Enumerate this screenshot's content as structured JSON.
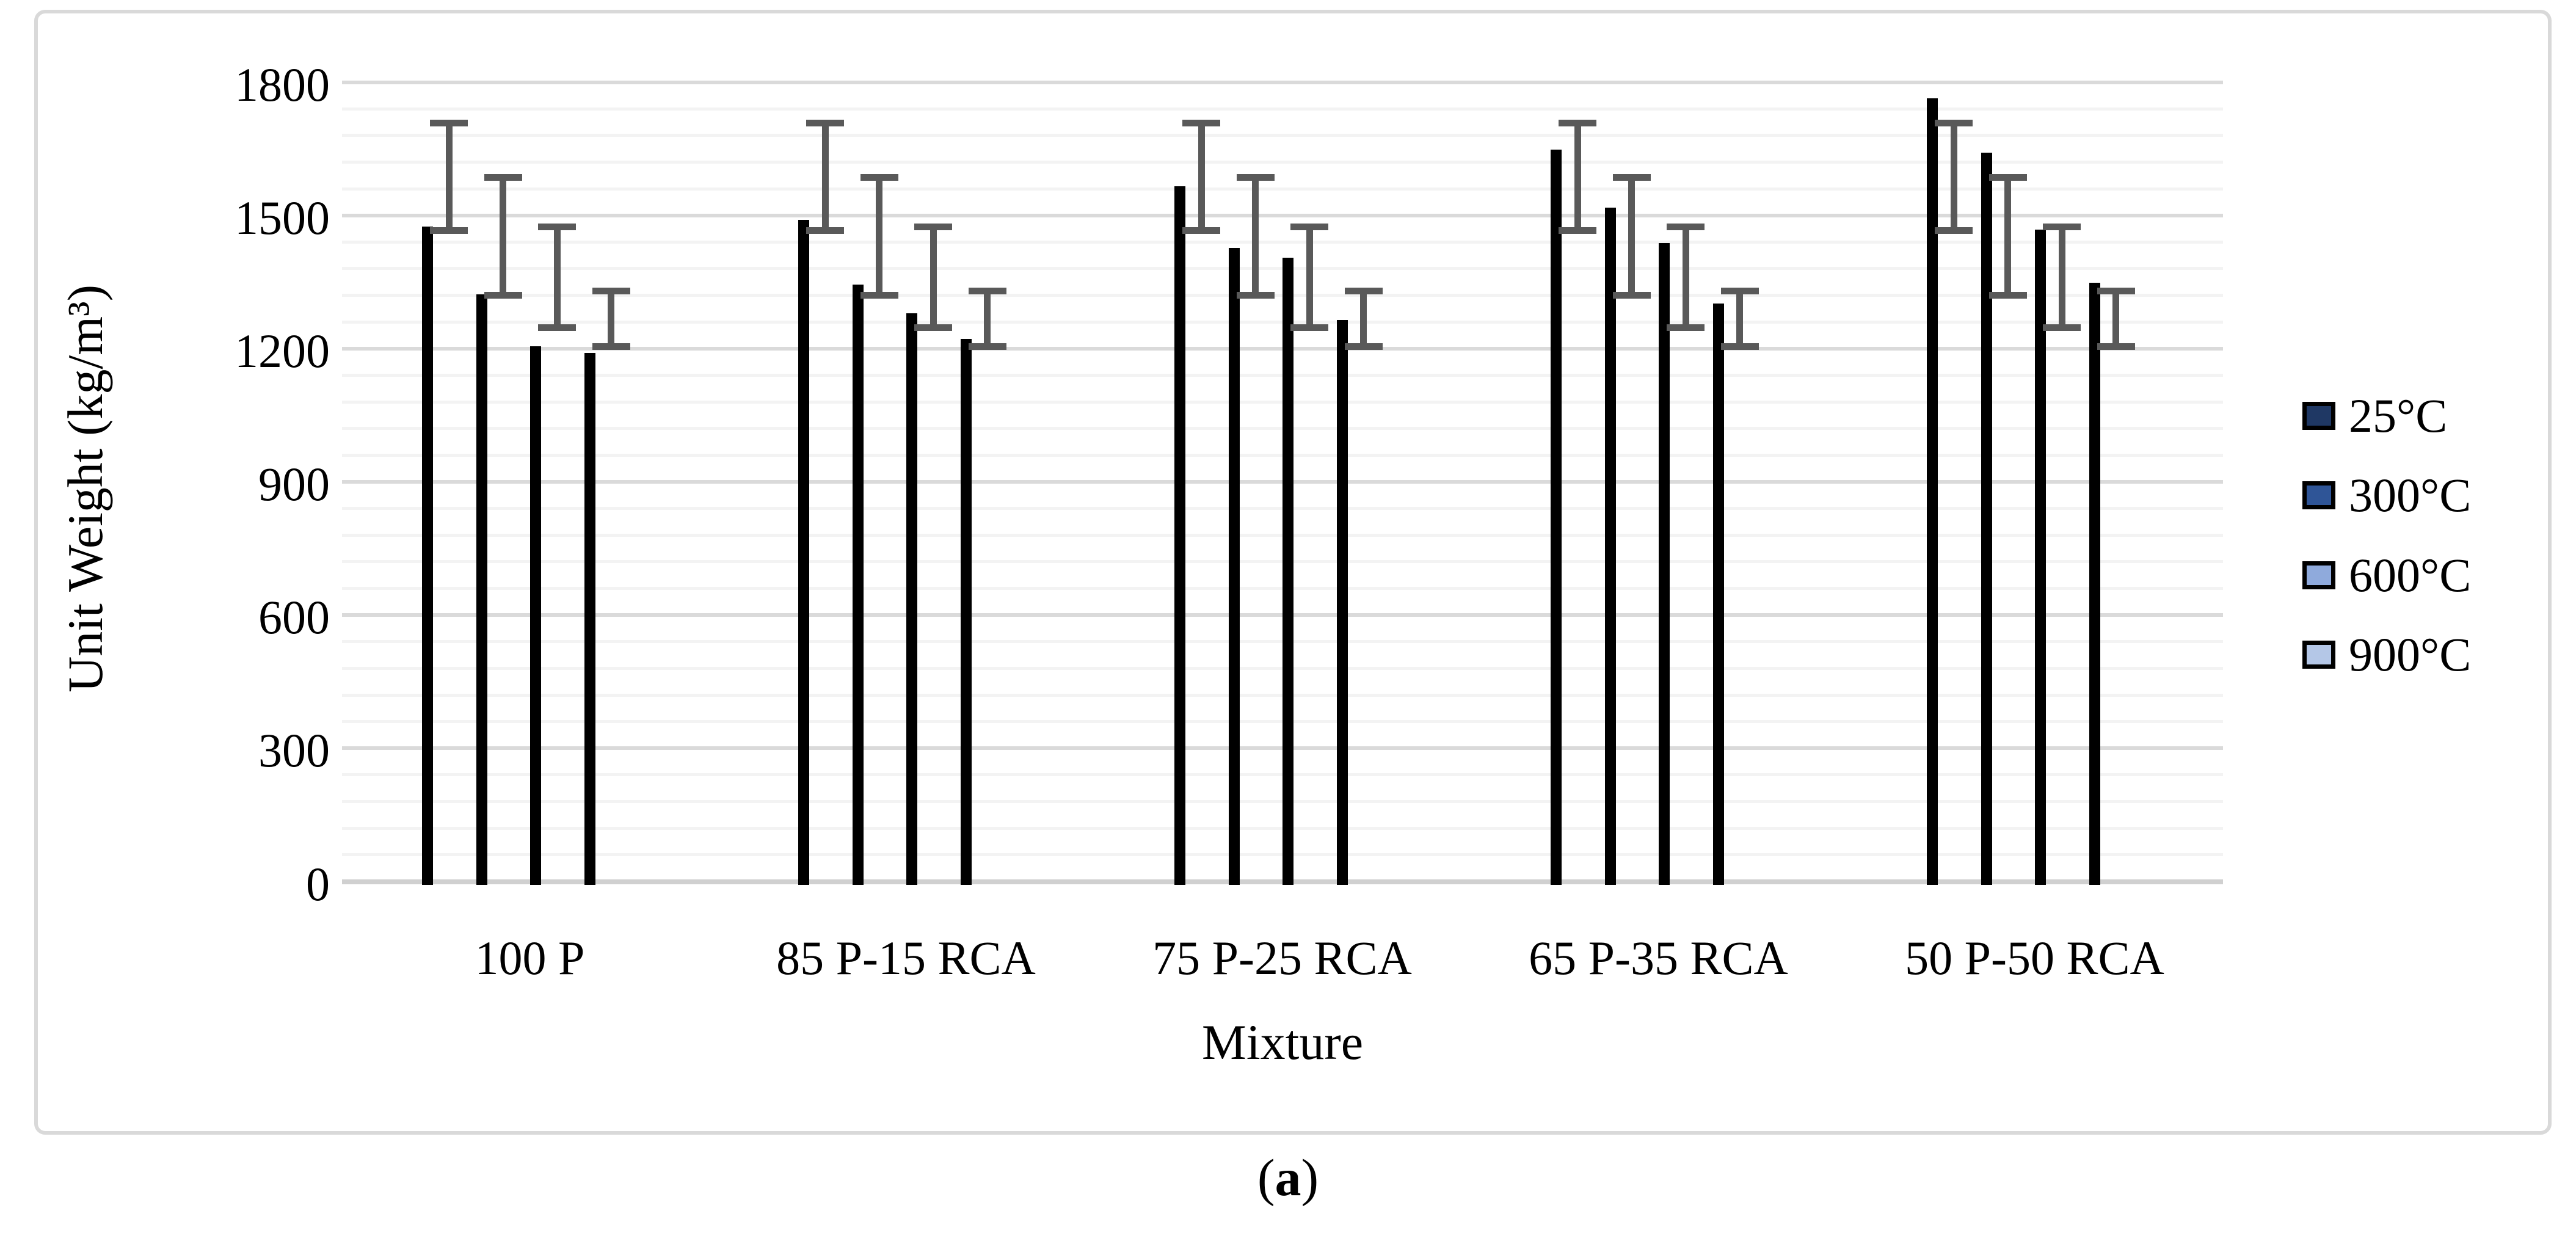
{
  "figure": {
    "caption": {
      "open": "(",
      "letter": "a",
      "close": ")"
    }
  },
  "chart_data": {
    "type": "bar",
    "categories": [
      "100 P",
      "85 P-15 RCA",
      "75 P-25 RCA",
      "65 P-35 RCA",
      "50 P-50 RCA"
    ],
    "series": [
      {
        "name": "25°C",
        "color": "#1F3864",
        "values": [
          1475,
          1490,
          1566,
          1648,
          1763
        ],
        "error_bar": {
          "lower": 1466,
          "upper": 1708,
          "mean": 1587,
          "sd": 121
        }
      },
      {
        "name": "300°C",
        "color": "#2F5597",
        "values": [
          1322,
          1344,
          1427,
          1517,
          1641
        ],
        "error_bar": {
          "lower": 1320,
          "upper": 1585,
          "mean": 1452,
          "sd": 132
        }
      },
      {
        "name": "600°C",
        "color": "#8FAADC",
        "values": [
          1205,
          1280,
          1405,
          1437,
          1468
        ],
        "error_bar": {
          "lower": 1247,
          "upper": 1474,
          "mean": 1360,
          "sd": 113
        }
      },
      {
        "name": "900°C",
        "color": "#B4C7E7",
        "values": [
          1190,
          1222,
          1265,
          1302,
          1348
        ],
        "error_bar": {
          "lower": 1205,
          "upper": 1330,
          "mean": 1267,
          "sd": 62
        }
      }
    ],
    "xlabel": "Mixture",
    "ylabel": "Unit Weight (kg/m³)",
    "ylim": [
      0,
      1800
    ],
    "ytick_step": 300,
    "minor_gridline_step": 60,
    "yticks": [
      "0",
      "300",
      "600",
      "900",
      "1200",
      "1500",
      "1800"
    ],
    "grid": true,
    "legend_position": "right",
    "error_bar_note": "±1 standard deviation centered on series mean"
  },
  "colors": {
    "bar_border": "#000000",
    "error_bar": "#595959",
    "major_gridline": "#DADADA",
    "minor_gridline": "#F3F3F3",
    "axis_line": "#D0D0D0",
    "chart_border": "#D9D9D9"
  }
}
